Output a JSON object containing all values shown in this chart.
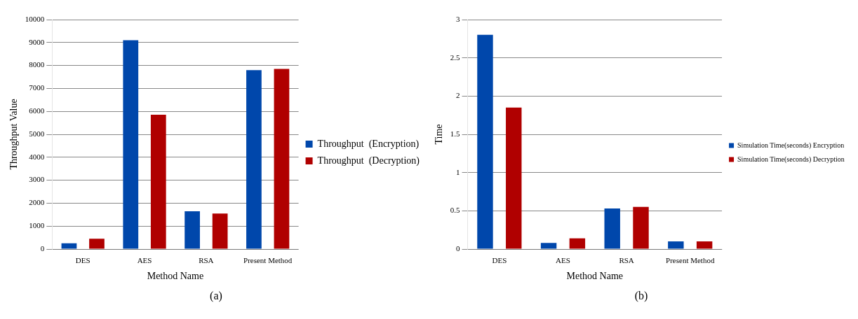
{
  "chart_data": [
    {
      "type": "bar",
      "xlabel": "Method Name",
      "ylabel": "Throughput Value",
      "categories": [
        "DES",
        "AES",
        "RSA",
        "Present Method"
      ],
      "series": [
        {
          "name": "Throughput  (Encryption)",
          "color": "#0047ab",
          "values": [
            250,
            9100,
            1650,
            7800
          ]
        },
        {
          "name": "Throughput  (Decryption)",
          "color": "#b00000",
          "values": [
            450,
            5850,
            1550,
            7850
          ]
        }
      ],
      "ylim": [
        0,
        10000
      ],
      "yticks": [
        0,
        1000,
        2000,
        3000,
        4000,
        5000,
        6000,
        7000,
        8000,
        9000,
        10000
      ],
      "grid": "y",
      "legend": "right",
      "annotations": [
        "(a)"
      ]
    },
    {
      "type": "bar",
      "xlabel": "Method Name",
      "ylabel": "Time",
      "categories": [
        "DES",
        "AES",
        "RSA",
        "Present Method"
      ],
      "series": [
        {
          "name": "Simulation Time(seconds) Encryption",
          "color": "#0047ab",
          "values": [
            2.8,
            0.08,
            0.53,
            0.1
          ]
        },
        {
          "name": "Simulation Time(seconds) Decryption",
          "color": "#b00000",
          "values": [
            1.85,
            0.14,
            0.55,
            0.1
          ]
        }
      ],
      "ylim": [
        0,
        3
      ],
      "yticks": [
        0,
        0.5,
        1,
        1.5,
        2,
        2.5,
        3
      ],
      "grid": "y",
      "legend": "right",
      "annotations": [
        "(b)"
      ]
    }
  ]
}
